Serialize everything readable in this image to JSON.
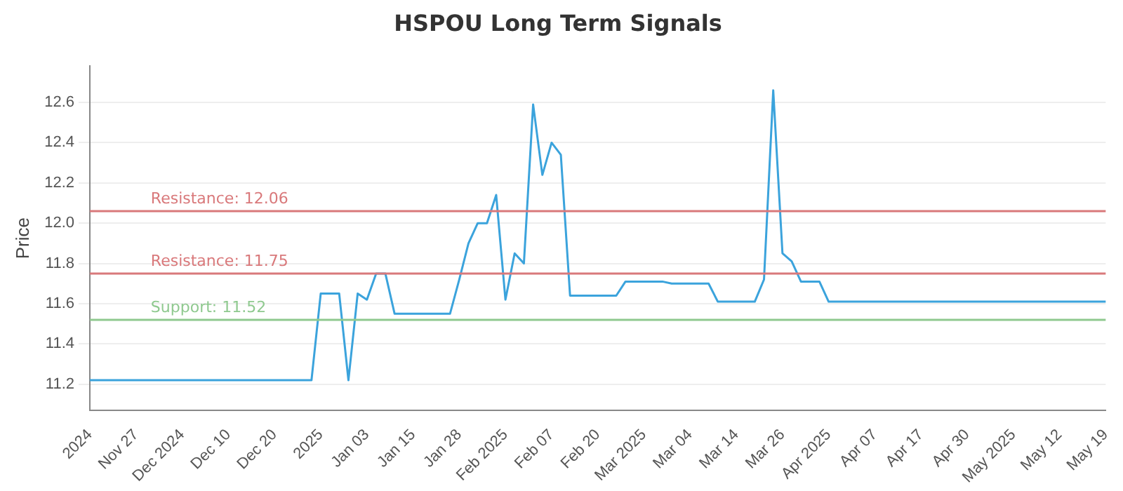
{
  "chart_data": {
    "type": "line",
    "title": "HSPOU Long Term Signals",
    "ylabel": "Price",
    "categories": [
      "2024",
      null,
      null,
      null,
      null,
      "Nov 27",
      null,
      null,
      null,
      null,
      "Dec 2024",
      null,
      null,
      null,
      null,
      "Dec 10",
      null,
      null,
      null,
      null,
      "Dec 20",
      null,
      null,
      null,
      null,
      "2025",
      null,
      null,
      null,
      null,
      "Jan 03",
      null,
      null,
      null,
      null,
      "Jan 15",
      null,
      null,
      null,
      null,
      "Jan 28",
      null,
      null,
      null,
      null,
      "Feb 2025",
      null,
      null,
      null,
      null,
      "Feb 07",
      null,
      null,
      null,
      null,
      "Feb 20",
      null,
      null,
      null,
      null,
      "Mar 2025",
      null,
      null,
      null,
      null,
      "Mar 04",
      null,
      null,
      null,
      null,
      "Mar 14",
      null,
      null,
      null,
      null,
      "Mar 26",
      null,
      null,
      null,
      null,
      "Apr 2025",
      null,
      null,
      null,
      null,
      "Apr 07",
      null,
      null,
      null,
      null,
      "Apr 17",
      null,
      null,
      null,
      null,
      "Apr 30",
      null,
      null,
      null,
      null,
      "May 2025",
      null,
      null,
      null,
      null,
      "May 12",
      null,
      null,
      null,
      null,
      "May 19"
    ],
    "series": [
      {
        "color": "#3ba3dc",
        "values": [
          11.22,
          11.22,
          11.22,
          11.22,
          11.22,
          11.22,
          11.22,
          11.22,
          11.22,
          11.22,
          11.22,
          11.22,
          11.22,
          11.22,
          11.22,
          11.22,
          11.22,
          11.22,
          11.22,
          11.22,
          11.22,
          11.22,
          11.22,
          11.22,
          11.22,
          11.65,
          11.65,
          11.65,
          11.22,
          11.65,
          11.62,
          11.75,
          11.75,
          11.55,
          11.55,
          11.55,
          11.55,
          11.55,
          11.55,
          11.55,
          11.72,
          11.9,
          12.0,
          12.0,
          12.14,
          11.62,
          11.85,
          11.8,
          12.59,
          12.24,
          12.4,
          12.34,
          11.64,
          11.64,
          11.64,
          11.64,
          11.64,
          11.64,
          11.71,
          11.71,
          11.71,
          11.71,
          11.71,
          11.7,
          11.7,
          11.7,
          11.7,
          11.7,
          11.61,
          11.61,
          11.61,
          11.61,
          11.61,
          11.72,
          12.66,
          11.85,
          11.81,
          11.71,
          11.71,
          11.71,
          11.61,
          11.61,
          11.61,
          11.61,
          11.61,
          11.61,
          11.61,
          11.61,
          11.61,
          11.61,
          11.61,
          11.61,
          11.61,
          11.61,
          11.61,
          11.61,
          11.61,
          11.61,
          11.61,
          11.61,
          11.61,
          11.61,
          11.61,
          11.61,
          11.61,
          11.61,
          11.61,
          11.61,
          11.61,
          11.61,
          11.61
        ]
      }
    ],
    "ylim": [
      11.07,
      12.78
    ],
    "yticks": [
      11.2,
      11.4,
      11.6,
      11.8,
      {
        "value": 12.0,
        "label": "12.0"
      },
      12.2,
      12.4,
      12.6
    ],
    "ref_lines": [
      {
        "axis": "y",
        "value": 12.06,
        "label": "Resistance: 12.06",
        "color": "#d9797b"
      },
      {
        "axis": "y",
        "value": 11.75,
        "label": "Resistance: 11.75",
        "color": "#d9797b"
      },
      {
        "axis": "y",
        "value": 11.52,
        "label": "Support: 11.52",
        "color": "#8fc98f"
      }
    ],
    "grid": "y",
    "legend": false,
    "marker": "none",
    "line_style": "solid"
  }
}
